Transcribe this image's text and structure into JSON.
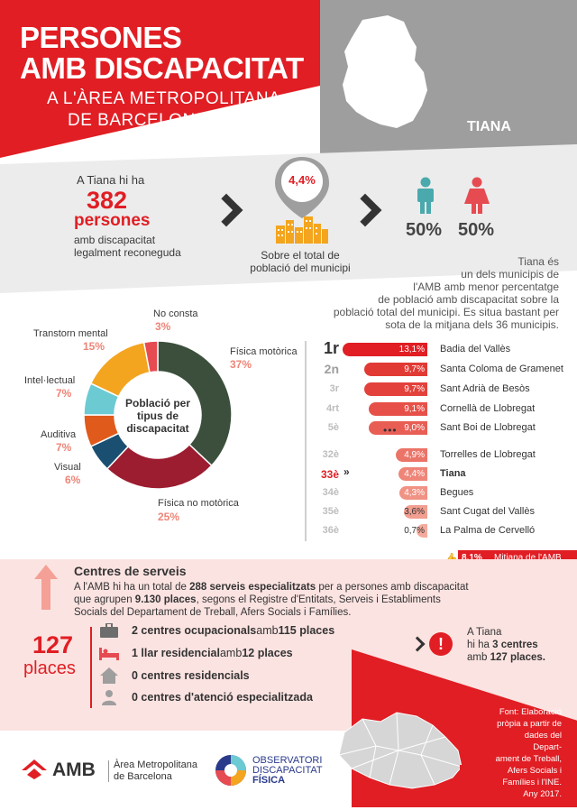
{
  "header": {
    "title_line1": "PERSONES",
    "title_line2": "AMB DISCAPACITAT",
    "subtitle_line1": "A L'ÀREA METROPOLITANA",
    "subtitle_line2": "DE BARCELONA",
    "municipality": "TIANA"
  },
  "summary": {
    "intro": "A Tiana hi ha",
    "count": "382",
    "unit": "persones",
    "desc_line1": "amb discapacitat",
    "desc_line2": "legalment reconeguda",
    "pin_value": "4,4%",
    "pin_desc_line1": "Sobre el total de",
    "pin_desc_line2": "població del municipi",
    "male_pct": "50%",
    "female_pct": "50%"
  },
  "note": {
    "lines": [
      "Tiana és",
      "un dels municipis de",
      "l'AMB amb menor percentatge",
      "de població amb discapacitat sobre la",
      "població total del municipi. Es situa bastant per",
      "sota de la mitjana dels 36 municipis."
    ]
  },
  "chart_data": {
    "type": "pie",
    "title": "Població per tipus de discapacitat",
    "center_line1": "Població per",
    "center_line2": "tipus de",
    "center_line3": "discapacitat",
    "slices": [
      {
        "label": "Física motòrica",
        "value": 37,
        "display": "37%",
        "color": "#3b4f3c"
      },
      {
        "label": "Física no motòrica",
        "value": 25,
        "display": "25%",
        "color": "#9c1c30"
      },
      {
        "label": "Visual",
        "value": 6,
        "display": "6%",
        "color": "#1b4f72"
      },
      {
        "label": "Auditiva",
        "value": 7,
        "display": "7%",
        "color": "#e05a1b"
      },
      {
        "label": "Intel·lectual",
        "value": 7,
        "display": "7%",
        "color": "#6ccad3"
      },
      {
        "label": "Transtorn mental",
        "value": 15,
        "display": "15%",
        "color": "#f3a51f"
      },
      {
        "label": "No consta",
        "value": 3,
        "display": "3%",
        "color": "#e64b52"
      }
    ]
  },
  "ranking": {
    "rows": [
      {
        "rank": "1r",
        "value": 13.1,
        "display": "13,1%",
        "name": "Badia del Vallès",
        "color": "#e01e24"
      },
      {
        "rank": "2n",
        "value": 9.7,
        "display": "9,7%",
        "name": "Santa Coloma de Gramenet",
        "color": "#e13a35"
      },
      {
        "rank": "3r",
        "value": 9.7,
        "display": "9,7%",
        "name": "Sant Adrià de Besòs",
        "color": "#e3413b"
      },
      {
        "rank": "4rt",
        "value": 9.1,
        "display": "9,1%",
        "name": "Cornellà de Llobregat",
        "color": "#e65048"
      },
      {
        "rank": "5è",
        "value": 9.0,
        "display": "9,0%",
        "name": "Sant Boi de Llobregat",
        "color": "#e85e55"
      },
      {
        "rank": "32è",
        "value": 4.9,
        "display": "4,9%",
        "name": "Torrelles de Llobregat",
        "color": "#eb7468"
      },
      {
        "rank": "33è",
        "value": 4.4,
        "display": "4,4%",
        "name": "Tiana",
        "color": "#ee8578"
      },
      {
        "rank": "34è",
        "value": 4.3,
        "display": "4,3%",
        "name": "Begues",
        "color": "#f09284"
      },
      {
        "rank": "35è",
        "value": 3.6,
        "display": "3,6%",
        "name": "Sant Cugat del Vallès",
        "color": "#f29e90"
      },
      {
        "rank": "36è",
        "value": 0.7,
        "display": "0,7%",
        "name": "La Palma de Cervelló",
        "color": "#f4ab9d"
      }
    ],
    "ellipsis": "•••",
    "mean_value": "8,1%",
    "mean_label": "Mitjana de l'AMB"
  },
  "centres": {
    "title": "Centres de serveis",
    "text_line1_a": "A l'AMB hi ha un total de ",
    "text_line1_b": "288 serveis especialitzats",
    "text_line1_c": " per a persones amb discapacitat",
    "text_line2_a": "que agrupen ",
    "text_line2_b": "9.130 places",
    "text_line2_c": ", segons el Registre d'Entitats, Serveis i Establiments",
    "text_line3": "Socials del Departament de Treball, Afers Socials i Famílies.",
    "places_number": "127",
    "places_label": "places",
    "services": [
      {
        "a": "2 centres ocupacionals",
        "b": " amb ",
        "c": "115 places"
      },
      {
        "a": "1 llar residencial",
        "b": " amb ",
        "c": "12 places"
      },
      {
        "a": "0 centres residencials",
        "b": "",
        "c": ""
      },
      {
        "a": "0 centres d'atenció especialitzada",
        "b": "",
        "c": ""
      }
    ],
    "tiana_line1": "A Tiana",
    "tiana_line2_a": "hi ha ",
    "tiana_line2_b": "3 centres",
    "tiana_line3_a": "amb ",
    "tiana_line3_b": "127 places."
  },
  "footer": {
    "amb_logo": "AMB",
    "amb_name_line1": "Àrea Metropolitana",
    "amb_name_line2": "de Barcelona",
    "obs_line1": "OBSERVATORI",
    "obs_line2": "DISCAPACITAT",
    "obs_line3": "FÍSICA",
    "source_lines": [
      "Font: Elaboració",
      "pròpia a partir de",
      "dades del Depart-",
      "ament de Treball,",
      "Afers Socials i",
      "Famílies i l'INE.",
      "Any 2017."
    ]
  }
}
